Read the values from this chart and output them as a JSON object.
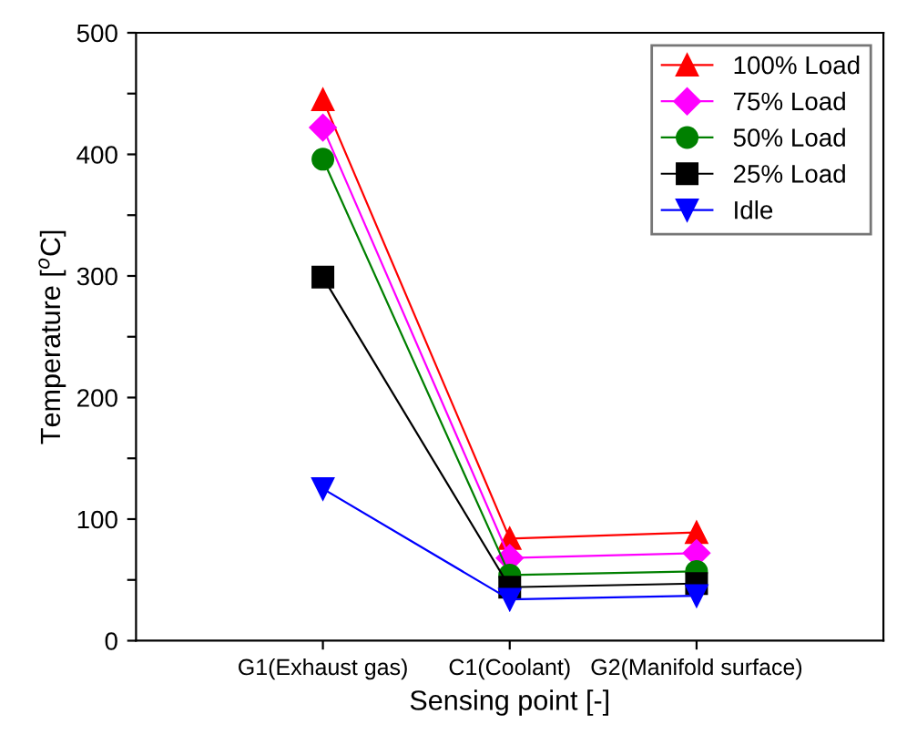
{
  "chart_data": {
    "type": "line",
    "xlabel": "Sensing point [-]",
    "ylabel": "Temperature [$^{o}$C]",
    "categories": [
      "G1(Exhaust gas)",
      "C1(Coolant)",
      "G2(Manifold surface)"
    ],
    "ylim": [
      0,
      500
    ],
    "yticks": [
      0,
      {
        "value": 50,
        "label": null
      },
      100,
      {
        "value": 150,
        "label": null
      },
      200,
      {
        "value": 250,
        "label": null
      },
      300,
      {
        "value": 350,
        "label": null
      },
      400,
      {
        "value": 450,
        "label": null
      },
      500
    ],
    "grid": false,
    "legend": "top right",
    "line_style": "solid",
    "series": [
      {
        "name": "100% Load",
        "color": "#ff0000",
        "marker": "triangle",
        "values": [
          445,
          84,
          89
        ]
      },
      {
        "name": "75% Load",
        "color": "#ff00ff",
        "marker": "diamond",
        "values": [
          422,
          68,
          72
        ]
      },
      {
        "name": "50% Load",
        "color": "#008000",
        "marker": "circle",
        "values": [
          396,
          54,
          57
        ]
      },
      {
        "name": "25% Load",
        "color": "#000000",
        "marker": "square",
        "values": [
          299,
          44,
          47
        ]
      },
      {
        "name": "Idle",
        "color": "#0000ff",
        "marker": "triangle_down",
        "values": [
          125,
          34,
          37
        ]
      }
    ]
  }
}
